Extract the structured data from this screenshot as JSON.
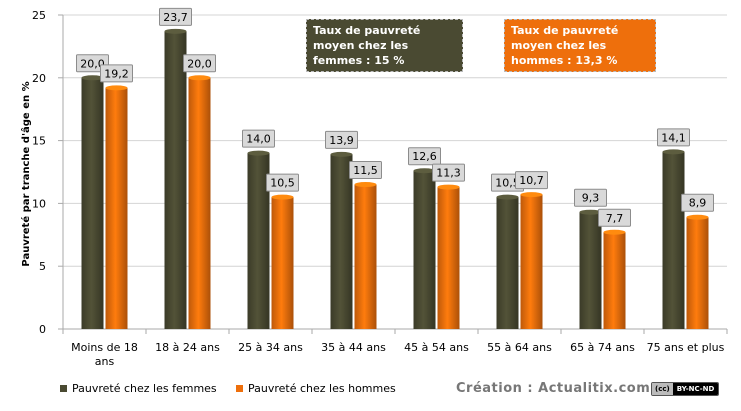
{
  "chart_data": {
    "type": "bar",
    "ylabel": "Pauvreté par tranche d'âge en %",
    "ylim": [
      0,
      25
    ],
    "yticks": [
      0,
      5,
      10,
      15,
      20,
      25
    ],
    "grid": true,
    "categories": [
      "Moins de 18 ans",
      "18 à 24 ans",
      "25 à 34 ans",
      "35 à 44 ans",
      "45 à 54 ans",
      "55 à 64 ans",
      "65 à 74 ans",
      "75 ans et plus"
    ],
    "series": [
      {
        "name": "Pauvreté chez les femmes",
        "color": "#4a4a32",
        "values": [
          20.0,
          23.7,
          14.0,
          13.9,
          12.6,
          10.5,
          9.3,
          14.1
        ],
        "labels": [
          "20,0",
          "23,7",
          "14,0",
          "13,9",
          "12,6",
          "10,5",
          "9,3",
          "14,1"
        ]
      },
      {
        "name": "Pauvreté chez les hommes",
        "color": "#ee6f0c",
        "values": [
          19.2,
          20.0,
          10.5,
          11.5,
          11.3,
          10.7,
          7.7,
          8.9
        ],
        "labels": [
          "19,2",
          "20,0",
          "10,5",
          "11,5",
          "11,3",
          "10,7",
          "7,7",
          "8,9"
        ]
      }
    ],
    "annotations": [
      {
        "lines": [
          "Taux de pauvreté",
          "moyen chez les",
          "femmes  : 15 %"
        ],
        "color": "#4a4a32"
      },
      {
        "lines": [
          "Taux de pauvreté",
          "moyen chez les",
          "hommes : 13,3 %"
        ],
        "color": "#ee6f0c"
      }
    ],
    "legend_position": "bottom-left"
  },
  "footer": {
    "credit": "Création : Actualitix.com",
    "license_left": "(cc)",
    "license_right": "BY-NC-ND"
  }
}
